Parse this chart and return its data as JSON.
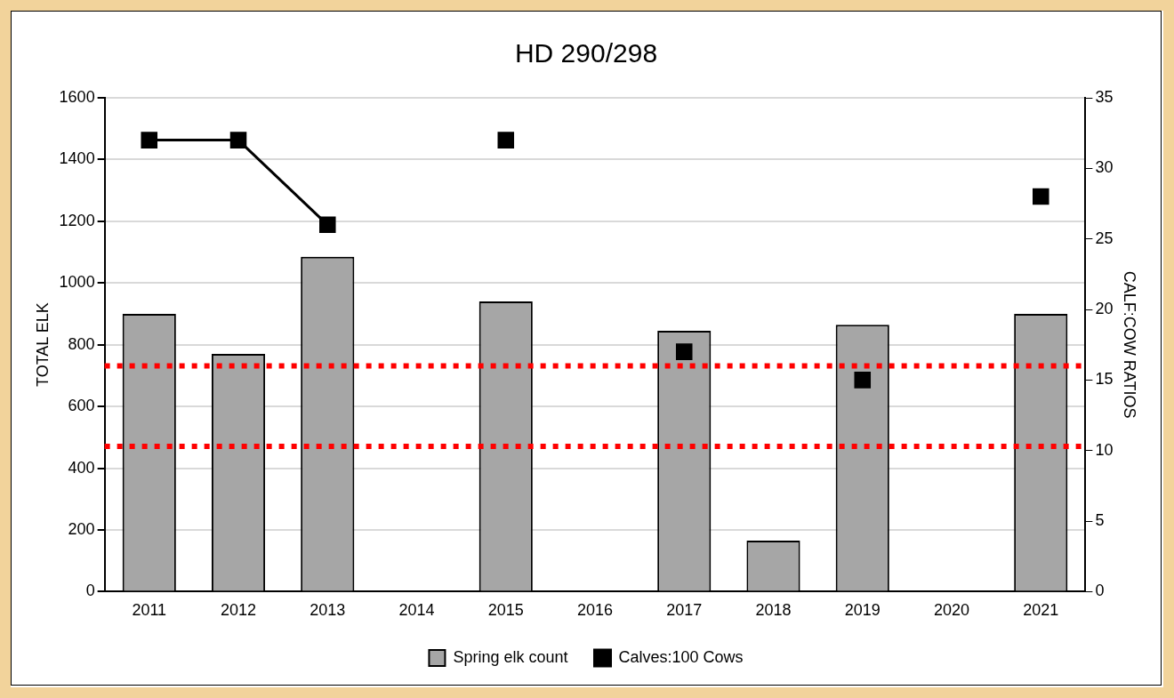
{
  "chart_data": {
    "type": "bar",
    "title": "HD 290/298",
    "ylabel": "TOTAL ELK",
    "y2label": "CALF:COW RATIOS",
    "categories": [
      "2011",
      "2012",
      "2013",
      "2014",
      "2015",
      "2016",
      "2017",
      "2018",
      "2019",
      "2020",
      "2021"
    ],
    "series": [
      {
        "name": "Spring elk count",
        "color": "#a6a6a6",
        "values": [
          900,
          770,
          1085,
          null,
          940,
          null,
          845,
          165,
          865,
          null,
          900
        ]
      },
      {
        "name": "Calves:100 Cows",
        "type": "line",
        "axis": "y2",
        "color": "#000000",
        "marker": "square",
        "values": [
          32,
          32,
          26,
          null,
          32,
          null,
          17,
          null,
          15,
          null,
          28
        ]
      }
    ],
    "ylim": [
      0,
      1600
    ],
    "yticks": [
      0,
      200,
      400,
      600,
      800,
      1000,
      1200,
      1400,
      1600
    ],
    "y2lim": [
      0,
      35
    ],
    "y2ticks": [
      0,
      5,
      10,
      15,
      20,
      25,
      30,
      35
    ],
    "ref_lines": [
      {
        "axis": "y2",
        "value": 16,
        "color": "#ff0000",
        "line_style": "dotted"
      },
      {
        "axis": "y2",
        "value": 10.3,
        "color": "#ff0000",
        "line_style": "dotted"
      }
    ],
    "grid": "y",
    "legend": "bottom"
  }
}
